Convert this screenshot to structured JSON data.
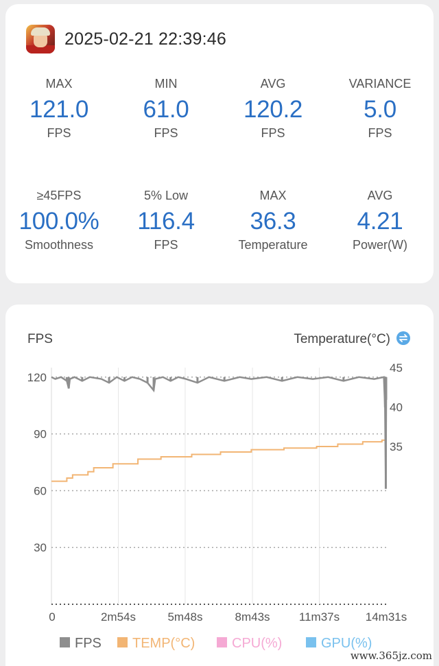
{
  "session": {
    "timestamp": "2025-02-21 22:39:46",
    "app_icon": "game-hero-icon"
  },
  "stats_row1": [
    {
      "label": "MAX",
      "value": "121.0",
      "unit": "FPS"
    },
    {
      "label": "MIN",
      "value": "61.0",
      "unit": "FPS"
    },
    {
      "label": "AVG",
      "value": "120.2",
      "unit": "FPS"
    },
    {
      "label": "VARIANCE",
      "value": "5.0",
      "unit": "FPS"
    }
  ],
  "stats_row2": [
    {
      "label": "≥45FPS",
      "value": "100.0%",
      "unit": "Smoothness"
    },
    {
      "label": "5% Low",
      "value": "116.4",
      "unit": "FPS"
    },
    {
      "label": "MAX",
      "value": "36.3",
      "unit": "Temperature"
    },
    {
      "label": "AVG",
      "value": "4.21",
      "unit": "Power(W)"
    }
  ],
  "chart_header": {
    "left_label": "FPS",
    "right_label": "Temperature(°C)",
    "swap_icon": "swap-arrows-icon"
  },
  "colors": {
    "accent_value": "#2a6fc4",
    "fps": "#8e8e8e",
    "temp": "#f2b574",
    "cpu": "#f5a9d4",
    "gpu": "#79c1ee",
    "swap_icon": "#5aa9e6"
  },
  "chart_data": {
    "type": "line",
    "x_tick_labels": [
      "0",
      "2m54s",
      "5m48s",
      "8m43s",
      "11m37s",
      "14m31s"
    ],
    "x_tick_seconds": [
      0,
      174,
      348,
      523,
      697,
      871
    ],
    "x_range_seconds": [
      0,
      871
    ],
    "y_left": {
      "label": "FPS",
      "ticks": [
        120,
        90,
        60,
        30
      ],
      "range": [
        0,
        125
      ]
    },
    "y_right": {
      "label": "Temperature(°C)",
      "ticks": [
        45,
        40,
        35
      ],
      "range": [
        15,
        45
      ]
    },
    "grid": true,
    "legend_position": "bottom",
    "legend": [
      "FPS",
      "TEMP(°C)",
      "CPU(%)",
      "GPU(%)"
    ],
    "series": [
      {
        "name": "FPS",
        "axis": "left",
        "x": [
          0,
          10,
          25,
          40,
          45,
          48,
          60,
          80,
          100,
          130,
          150,
          170,
          190,
          210,
          230,
          250,
          266,
          270,
          290,
          310,
          330,
          350,
          380,
          410,
          450,
          490,
          520,
          560,
          600,
          640,
          680,
          720,
          760,
          800,
          840,
          865,
          868,
          870,
          871
        ],
        "y": [
          120,
          119,
          120,
          118,
          114,
          119,
          120,
          118,
          120,
          119,
          117,
          120,
          118,
          120,
          119,
          117,
          113,
          119,
          120,
          118,
          120,
          119,
          117,
          120,
          118,
          120,
          119,
          120,
          118,
          120,
          119,
          120,
          118,
          120,
          119,
          120,
          104,
          61,
          108
        ]
      },
      {
        "name": "TEMP(°C)",
        "axis": "right",
        "x": [
          0,
          40,
          55,
          95,
          110,
          160,
          225,
          285,
          365,
          440,
          520,
          605,
          690,
          745,
          810,
          860,
          871
        ],
        "y": [
          30.6,
          31.0,
          31.4,
          31.8,
          32.3,
          32.8,
          33.4,
          33.7,
          34.0,
          34.3,
          34.6,
          34.8,
          35.0,
          35.3,
          35.6,
          35.8,
          35.8
        ]
      }
    ]
  },
  "watermark": "www.365jz.com"
}
